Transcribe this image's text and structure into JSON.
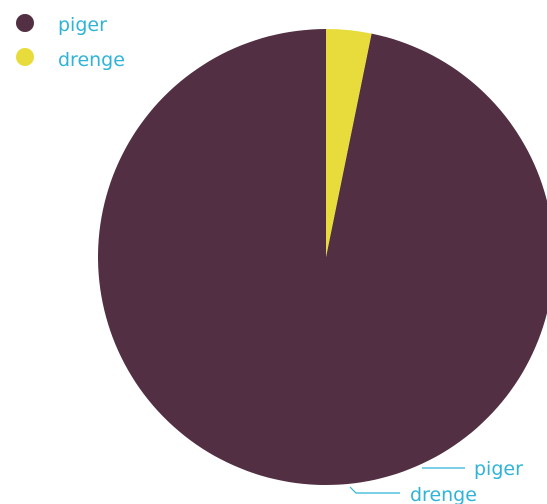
{
  "chart_data": {
    "type": "pie",
    "categories": [
      "piger",
      "drenge"
    ],
    "values": [
      96.8,
      3.2
    ],
    "colors": [
      "#522f42",
      "#e8dc3c"
    ],
    "label_color": "#2fb4d8",
    "title": "",
    "legend": {
      "placement": "top-left",
      "items": [
        "piger",
        "drenge"
      ]
    },
    "start_angle_deg": 0,
    "direction": "counterclockwise"
  }
}
